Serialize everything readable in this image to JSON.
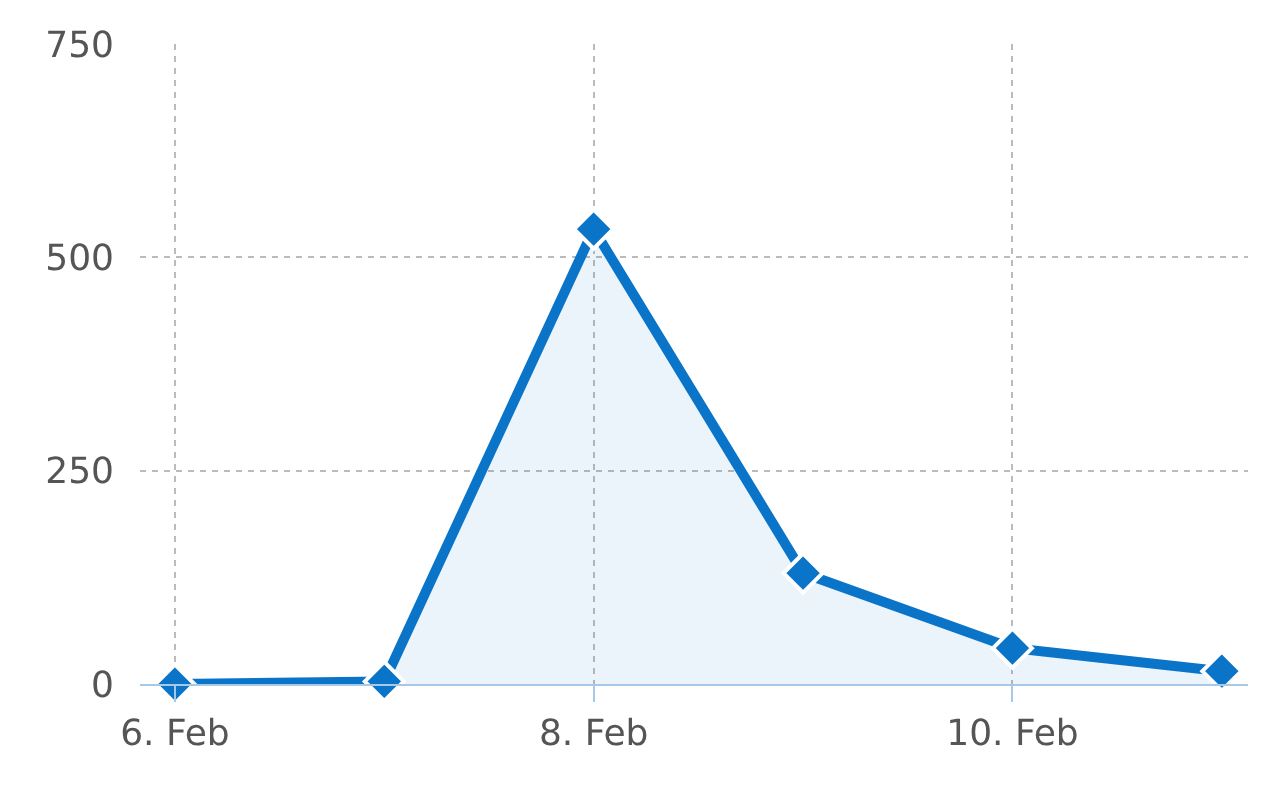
{
  "chart_data": {
    "type": "area",
    "x": [
      "--02-06",
      "--02-07",
      "--02-08",
      "--02-09",
      "--02-10",
      "--02-11"
    ],
    "series": [
      {
        "color": "#0a74c9",
        "values": [
          0,
          3,
          533,
          130,
          42,
          15
        ]
      }
    ],
    "xlim": [
      "--02-05T20:00",
      "--02-11T03:00"
    ],
    "xticks": [
      {
        "value": "--02-06",
        "label": "6. Feb"
      },
      {
        "value": "--02-08",
        "label": "8. Feb"
      },
      {
        "value": "--02-10",
        "label": "10. Feb"
      }
    ],
    "ylim": [
      0,
      750
    ],
    "yticks": [
      0,
      250,
      500,
      750
    ],
    "grid": true,
    "marker": "diamond",
    "line_style": "solid",
    "legend": false
  }
}
